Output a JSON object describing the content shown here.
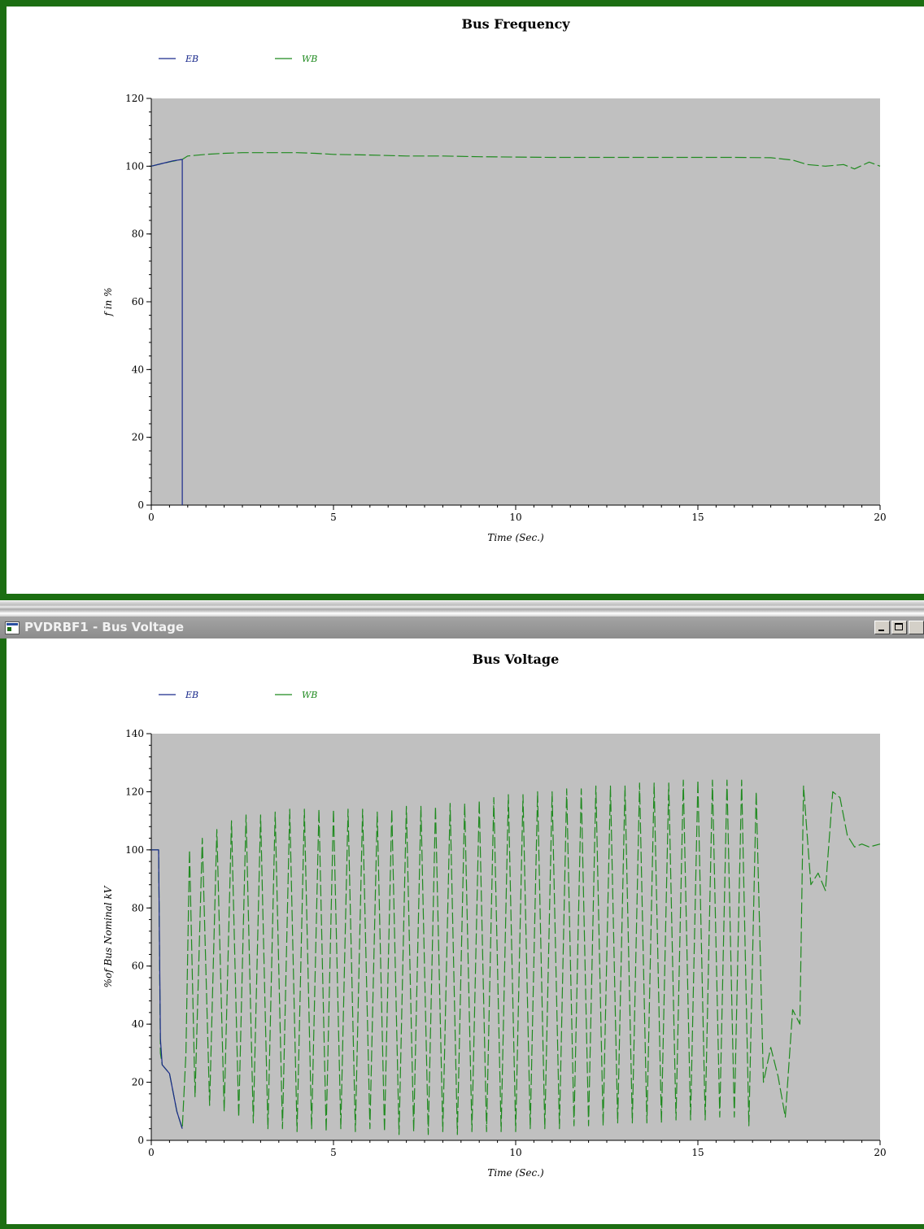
{
  "window2": {
    "title": "PVDRBF1 - Bus Voltage",
    "controls": {
      "minimize": "minimize",
      "maximize": "maximize",
      "close": "close"
    }
  },
  "colors": {
    "frame": "#1c6e12",
    "plot_background": "#c0c0c0",
    "series_eb": "#1a2a8c",
    "series_wb": "#1f8a1f"
  },
  "chart_data": [
    {
      "type": "line",
      "title": "Bus Frequency",
      "xlabel": "Time (Sec.)",
      "ylabel": "f in %",
      "xlim": [
        0,
        20
      ],
      "ylim": [
        0,
        120
      ],
      "xticks": [
        "0",
        "5",
        "10",
        "15",
        "20"
      ],
      "yticks": [
        "0",
        "20",
        "40",
        "60",
        "80",
        "100",
        "120"
      ],
      "legend": "top-left",
      "series": [
        {
          "name": "EB",
          "x": [
            0,
            0.3,
            0.6,
            0.85,
            0.85,
            0.85
          ],
          "y": [
            100,
            100.8,
            101.6,
            102,
            0,
            0
          ]
        },
        {
          "name": "WB",
          "x": [
            0,
            0.3,
            0.6,
            0.85,
            1.0,
            1.5,
            2,
            2.5,
            3,
            3.5,
            4,
            4.5,
            5,
            6,
            7,
            8,
            9,
            10,
            11,
            12,
            13,
            14,
            15,
            16,
            17,
            17.6,
            18,
            18.5,
            19,
            19.3,
            19.7,
            20
          ],
          "y": [
            100,
            100.8,
            101.5,
            102,
            103,
            103.5,
            103.8,
            104,
            104,
            104,
            104,
            103.8,
            103.5,
            103.3,
            103,
            103,
            102.8,
            102.7,
            102.6,
            102.6,
            102.6,
            102.6,
            102.6,
            102.6,
            102.5,
            101.8,
            100.5,
            100,
            100.5,
            99.2,
            101.2,
            100
          ]
        }
      ]
    },
    {
      "type": "line",
      "title": "Bus Voltage",
      "xlabel": "Time (Sec.)",
      "ylabel": "%of Bus Nominal kV",
      "xlim": [
        0,
        20
      ],
      "ylim": [
        0,
        140
      ],
      "xticks": [
        "0",
        "5",
        "10",
        "15",
        "20"
      ],
      "yticks": [
        "0",
        "20",
        "40",
        "60",
        "80",
        "100",
        "120",
        "140"
      ],
      "legend": "top-left",
      "series": [
        {
          "name": "EB",
          "x": [
            0,
            0.2,
            0.25,
            0.3,
            0.5,
            0.7,
            0.85
          ],
          "y": [
            100,
            100,
            35,
            26,
            23,
            10,
            4
          ]
        },
        {
          "name": "WB",
          "x": [
            0,
            0.2,
            0.25,
            0.3,
            0.5,
            0.7,
            0.85,
            0.95,
            1.05,
            1.2,
            1.4,
            1.6,
            1.8,
            2.0,
            2.2,
            2.4,
            2.6,
            2.8,
            3.0,
            3.2,
            3.4,
            3.6,
            3.8,
            4.0,
            4.2,
            4.4,
            4.6,
            4.8,
            5.0,
            5.2,
            5.4,
            5.6,
            5.8,
            6.0,
            6.2,
            6.4,
            6.6,
            6.8,
            7.0,
            7.2,
            7.4,
            7.6,
            7.8,
            8.0,
            8.2,
            8.4,
            8.6,
            8.8,
            9.0,
            9.2,
            9.4,
            9.6,
            9.8,
            10.0,
            10.2,
            10.4,
            10.6,
            10.8,
            11.0,
            11.2,
            11.4,
            11.6,
            11.8,
            12.0,
            12.2,
            12.4,
            12.6,
            12.8,
            13.0,
            13.2,
            13.4,
            13.6,
            13.8,
            14.0,
            14.2,
            14.4,
            14.6,
            14.8,
            15.0,
            15.2,
            15.4,
            15.6,
            15.8,
            16.0,
            16.2,
            16.4,
            16.6,
            16.8,
            17.0,
            17.2,
            17.4,
            17.6,
            17.8,
            17.9,
            18.1,
            18.3,
            18.5,
            18.7,
            18.9,
            19.1,
            19.3,
            19.5,
            19.7,
            20.0
          ],
          "y": [
            100,
            100,
            30,
            26,
            23,
            10,
            4,
            30,
            100,
            15,
            104,
            12,
            107,
            10,
            110,
            8,
            112,
            6,
            112,
            4,
            113,
            4,
            114,
            3,
            114,
            4,
            114,
            3,
            114,
            4,
            114,
            3,
            114,
            4,
            113,
            3,
            114,
            2,
            115,
            3,
            115,
            2,
            115,
            3,
            116,
            2,
            116,
            3,
            117,
            3,
            118,
            3,
            119,
            3,
            119,
            4,
            120,
            4,
            120,
            4,
            121,
            5,
            121,
            5,
            122,
            5,
            122,
            6,
            122,
            6,
            123,
            6,
            123,
            6,
            123,
            7,
            124,
            7,
            124,
            7,
            124,
            8,
            124,
            8,
            124,
            5,
            120,
            20,
            32,
            22,
            8,
            45,
            40,
            122,
            88,
            92,
            86,
            120,
            118,
            105,
            101,
            102,
            101,
            102
          ]
        }
      ]
    }
  ]
}
